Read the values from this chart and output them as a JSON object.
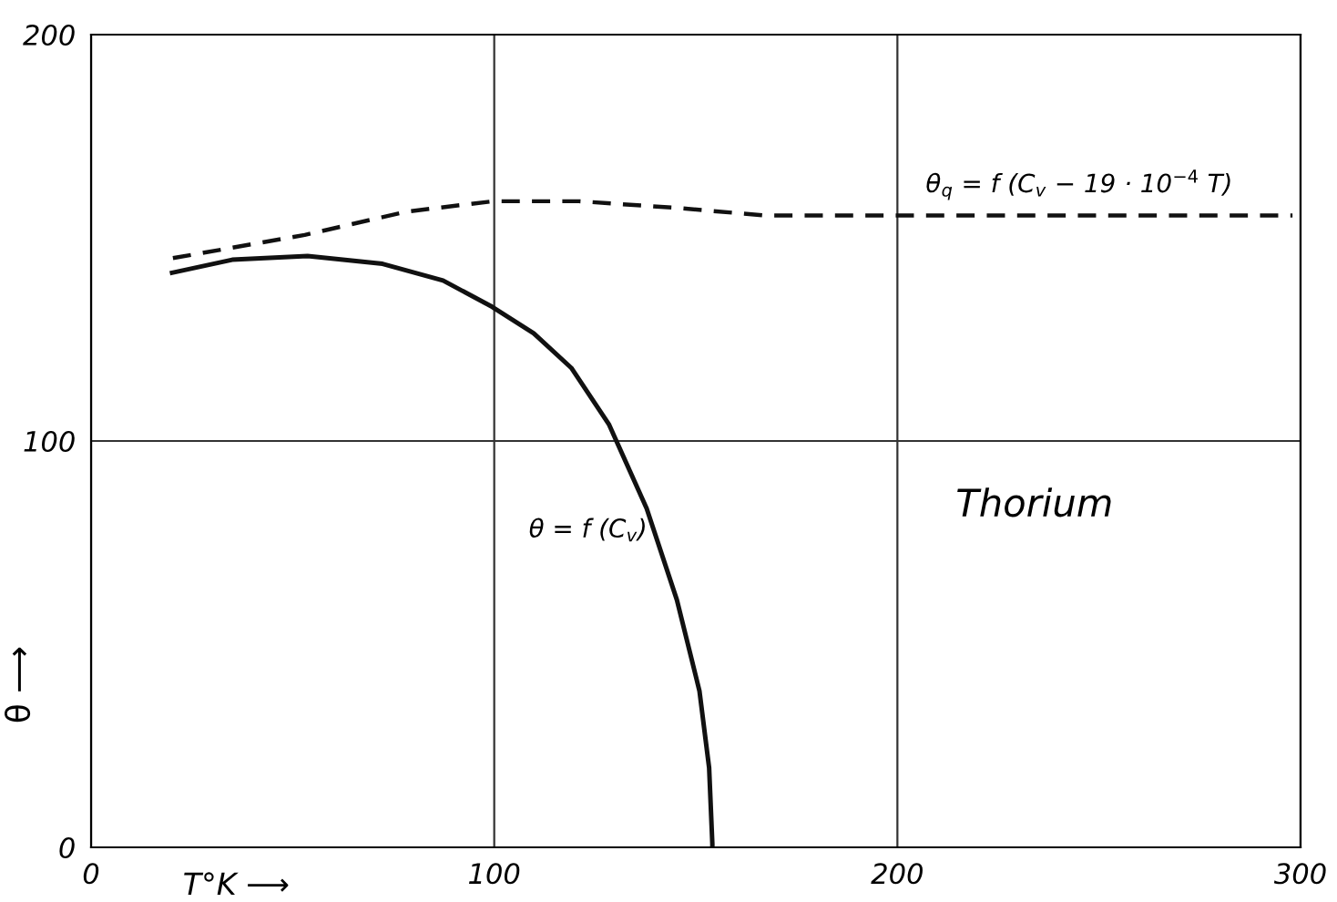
{
  "chart_data": {
    "type": "line",
    "xlabel": "T°K ⟶",
    "ylabel": "θ ⟶",
    "xlim": [
      0,
      300
    ],
    "xticks": [
      0,
      100,
      200,
      300
    ],
    "ylim": [
      0,
      200
    ],
    "yticks": [
      0,
      100,
      200
    ],
    "grid": true,
    "marker": "none",
    "series": [
      {
        "color": "#111111",
        "line_style": "solid",
        "x": [
          20.1,
          35,
          53.7,
          72.3,
          87.3,
          99.5,
          109.8,
          119.1,
          128.5,
          130.3,
          137.8,
          145.3,
          150.9,
          153.3,
          154.1,
          154.1
        ],
        "values": [
          141.4,
          144.6,
          145.5,
          143.6,
          139.5,
          133,
          126.5,
          118,
          104,
          100,
          83.4,
          60.9,
          38.5,
          19.6,
          0.9,
          0
        ]
      },
      {
        "color": "#111111",
        "line_style": "dashed",
        "x": [
          20.3,
          53,
          78,
          99.7,
          121,
          146,
          167,
          218,
          298
        ],
        "values": [
          145,
          150.7,
          156.4,
          159,
          159,
          157.3,
          155.5,
          155.5,
          155.5
        ]
      }
    ],
    "annotations": [
      "θ$_{q}$ = f (C$_{v}$ − 19 · 10$^{−4}$ T)",
      "θ = f (C$_{v}$)",
      "Thorium"
    ]
  }
}
